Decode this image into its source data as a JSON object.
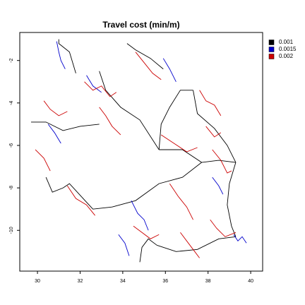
{
  "chart_data": {
    "type": "map",
    "title": "Travel cost (min/m)",
    "xlim": [
      29.17,
      40.56
    ],
    "ylim": [
      -11.92,
      -0.68
    ],
    "xticks": [
      30,
      32,
      34,
      36,
      38,
      40
    ],
    "yticks": [
      -2,
      -4,
      -6,
      -8,
      -10
    ],
    "legend": "top-right outside",
    "series": [
      {
        "name": "0.001",
        "color": "#000000",
        "lines": [
          {
            "x": [
              39.3,
              38.5,
              37.7,
              36.8,
              35.7
            ],
            "y": [
              -6.8,
              -6.7,
              -6.8,
              -6.2,
              -6.2
            ]
          },
          {
            "x": [
              35.7,
              34.8,
              33.9,
              33.2,
              32.9
            ],
            "y": [
              -6.2,
              -4.8,
              -4.2,
              -3.4,
              -2.5
            ]
          },
          {
            "x": [
              35.7,
              35.8,
              36.2,
              36.7,
              37.3
            ],
            "y": [
              -6.2,
              -5.0,
              -4.2,
              -3.4,
              -3.4
            ]
          },
          {
            "x": [
              37.7,
              36.8,
              35.7,
              34.6,
              33.5
            ],
            "y": [
              -6.8,
              -7.5,
              -7.8,
              -8.6,
              -8.9
            ]
          },
          {
            "x": [
              39.3,
              39.0,
              38.9,
              39.1,
              39.3
            ],
            "y": [
              -6.8,
              -7.8,
              -8.8,
              -9.8,
              -10.3
            ]
          },
          {
            "x": [
              39.3,
              38.5,
              37.5,
              36.5,
              35.6
            ],
            "y": [
              -10.3,
              -10.4,
              -10.9,
              -11.0,
              -10.7
            ]
          },
          {
            "x": [
              39.3,
              38.9,
              38.3,
              37.5,
              37.3
            ],
            "y": [
              -6.8,
              -6.0,
              -5.2,
              -4.5,
              -3.4
            ]
          },
          {
            "x": [
              32.9,
              32.0,
              31.2,
              30.4,
              29.7
            ],
            "y": [
              -5.0,
              -5.1,
              -5.3,
              -4.9,
              -4.9
            ]
          },
          {
            "x": [
              31.8,
              31.5,
              31.0,
              31.0
            ],
            "y": [
              -2.6,
              -1.6,
              -1.2,
              -1.0
            ]
          },
          {
            "x": [
              30.4,
              30.7,
              31.2,
              31.5,
              32.6,
              33.5
            ],
            "y": [
              -7.5,
              -8.2,
              -8.0,
              -7.8,
              -9.0,
              -8.9
            ]
          },
          {
            "x": [
              35.6,
              35.2,
              34.9,
              34.8
            ],
            "y": [
              -10.7,
              -10.4,
              -10.8,
              -11.5
            ]
          },
          {
            "x": [
              34.2,
              34.6,
              35.3,
              35.9
            ],
            "y": [
              -1.2,
              -1.5,
              -1.9,
              -2.4
            ]
          }
        ]
      },
      {
        "name": "0.0015",
        "color": "#0000cc",
        "lines": [
          {
            "x": [
              30.9,
              31.0,
              31.1,
              31.3
            ],
            "y": [
              -1.1,
              -1.6,
              -2.0,
              -2.4
            ]
          },
          {
            "x": [
              34.4,
              34.7,
              35.0,
              35.2
            ],
            "y": [
              -8.6,
              -9.2,
              -9.5,
              -10.0
            ]
          },
          {
            "x": [
              39.2,
              39.4,
              39.6,
              39.8
            ],
            "y": [
              -10.2,
              -10.5,
              -10.3,
              -10.6
            ]
          },
          {
            "x": [
              30.5,
              30.8,
              31.1
            ],
            "y": [
              -5.0,
              -5.4,
              -5.9
            ]
          },
          {
            "x": [
              32.3,
              32.6,
              33.0
            ],
            "y": [
              -2.7,
              -3.2,
              -3.5
            ]
          },
          {
            "x": [
              35.9,
              36.2,
              36.5
            ],
            "y": [
              -1.9,
              -2.4,
              -3.0
            ]
          },
          {
            "x": [
              38.2,
              38.5,
              38.7
            ],
            "y": [
              -7.5,
              -7.9,
              -8.3
            ]
          },
          {
            "x": [
              33.8,
              34.1,
              34.3
            ],
            "y": [
              -10.2,
              -10.6,
              -11.2
            ]
          }
        ]
      },
      {
        "name": "0.002",
        "color": "#cc0000",
        "lines": [
          {
            "x": [
              30.3,
              30.6,
              31.0,
              31.4
            ],
            "y": [
              -3.9,
              -4.3,
              -4.6,
              -4.4
            ]
          },
          {
            "x": [
              32.2,
              32.6,
              33.0,
              33.4,
              33.7
            ],
            "y": [
              -3.0,
              -3.4,
              -3.2,
              -3.7,
              -3.5
            ]
          },
          {
            "x": [
              34.6,
              35.0,
              35.4,
              35.8
            ],
            "y": [
              -1.6,
              -2.1,
              -2.6,
              -2.9
            ]
          },
          {
            "x": [
              37.6,
              37.9,
              38.3,
              38.6
            ],
            "y": [
              -3.4,
              -3.9,
              -4.1,
              -4.6
            ]
          },
          {
            "x": [
              35.8,
              36.4,
              37.0,
              37.5
            ],
            "y": [
              -5.5,
              -5.9,
              -6.3,
              -6.1
            ]
          },
          {
            "x": [
              38.2,
              38.6,
              38.9,
              39.1
            ],
            "y": [
              -6.2,
              -6.7,
              -7.3,
              -7.2
            ]
          },
          {
            "x": [
              31.4,
              31.8,
              32.3,
              32.7
            ],
            "y": [
              -7.9,
              -8.5,
              -8.8,
              -9.3
            ]
          },
          {
            "x": [
              34.5,
              34.9,
              35.3,
              35.7
            ],
            "y": [
              -9.8,
              -10.1,
              -10.4,
              -10.2
            ]
          },
          {
            "x": [
              36.2,
              36.6,
              37.0,
              37.3
            ],
            "y": [
              -7.8,
              -8.4,
              -8.9,
              -9.5
            ]
          },
          {
            "x": [
              38.1,
              38.4,
              38.8,
              39.3
            ],
            "y": [
              -9.5,
              -9.9,
              -10.3,
              -10.1
            ]
          },
          {
            "x": [
              32.9,
              33.2,
              33.5,
              33.9
            ],
            "y": [
              -4.2,
              -4.6,
              -5.1,
              -5.5
            ]
          },
          {
            "x": [
              29.9,
              30.3,
              30.6
            ],
            "y": [
              -6.2,
              -6.6,
              -7.2
            ]
          },
          {
            "x": [
              37.9,
              38.3,
              38.6
            ],
            "y": [
              -5.1,
              -5.6,
              -5.4
            ]
          },
          {
            "x": [
              36.7,
              37.0,
              37.3,
              37.6
            ],
            "y": [
              -10.1,
              -10.5,
              -10.9,
              -11.3
            ]
          }
        ]
      }
    ]
  }
}
